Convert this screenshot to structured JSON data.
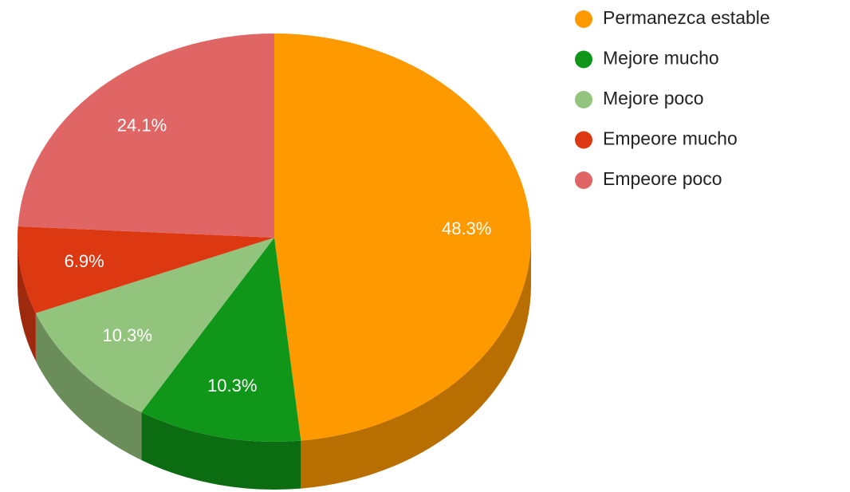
{
  "chart_data": {
    "type": "pie3d",
    "categories": [
      "Permanezca estable",
      "Mejore mucho",
      "Mejore poco",
      "Empeore mucho",
      "Empeore poco"
    ],
    "values": [
      48.3,
      10.3,
      10.3,
      6.9,
      24.1
    ],
    "value_labels": [
      "48.3%",
      "10.3%",
      "10.3%",
      "6.9%",
      "24.1%"
    ],
    "colors": [
      "#ff9900",
      "#109618",
      "#93c47d",
      "#dc3912",
      "#e06666"
    ],
    "legend": "right"
  }
}
